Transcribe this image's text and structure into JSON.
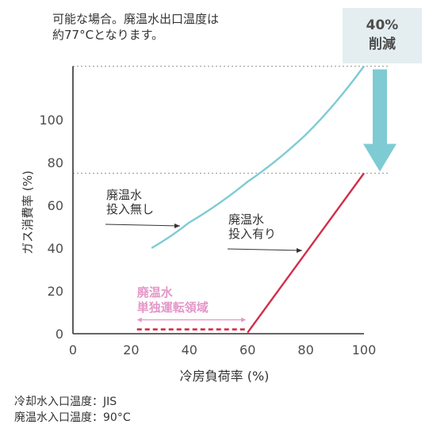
{
  "note": {
    "line1": "可能な場合。廃温水出口温度は",
    "line2": "約77°Cとなります。"
  },
  "badge": {
    "line1": "40%",
    "line2": "削減",
    "arrow_color": "#7ecbd3",
    "background": "#e4eef0"
  },
  "footnote": {
    "line1": "冷却水入口温度：JIS",
    "line2": "廃温水入口温度：90°C"
  },
  "colors": {
    "without_waste_heat": "#7ecbd3",
    "with_waste_heat": "#d22d4a",
    "region": "#e497c8",
    "axis": "#333333",
    "reference": "#9a9a9a"
  },
  "chart_data": {
    "type": "line",
    "xlabel": "冷房負荷率 (%)",
    "ylabel": "ガス消費率 (%)",
    "xlim": [
      0,
      100
    ],
    "ylim": [
      0,
      125
    ],
    "xticks": [
      0,
      20,
      40,
      60,
      80,
      100
    ],
    "yticks": [
      0,
      20,
      40,
      60,
      80,
      100
    ],
    "series": [
      {
        "name": "廃温水\n投入無し",
        "label_lines": [
          "廃温水",
          "投入無し"
        ],
        "color": "#7ecbd3",
        "x": [
          27,
          40,
          60,
          80,
          100
        ],
        "y": [
          40,
          52,
          71,
          93,
          125
        ]
      },
      {
        "name": "廃温水\n投入有り",
        "label_lines": [
          "廃温水",
          "投入有り"
        ],
        "color": "#d22d4a",
        "x": [
          60,
          100
        ],
        "y": [
          0.5,
          75
        ]
      },
      {
        "name": "dashed-low",
        "dashed": true,
        "color": "#d22d4a",
        "x": [
          22,
          60
        ],
        "y": [
          2,
          2
        ]
      }
    ],
    "reference_lines": [
      {
        "y": 125
      },
      {
        "y": 75
      }
    ],
    "region": {
      "label_lines": [
        "廃温水",
        "単独運転領域"
      ],
      "x": [
        22,
        60
      ],
      "y": 5
    },
    "annotations": {
      "without_label_lines": [
        "廃温水",
        "投入無し"
      ],
      "with_label_lines": [
        "廃温水",
        "投入有り"
      ]
    }
  }
}
